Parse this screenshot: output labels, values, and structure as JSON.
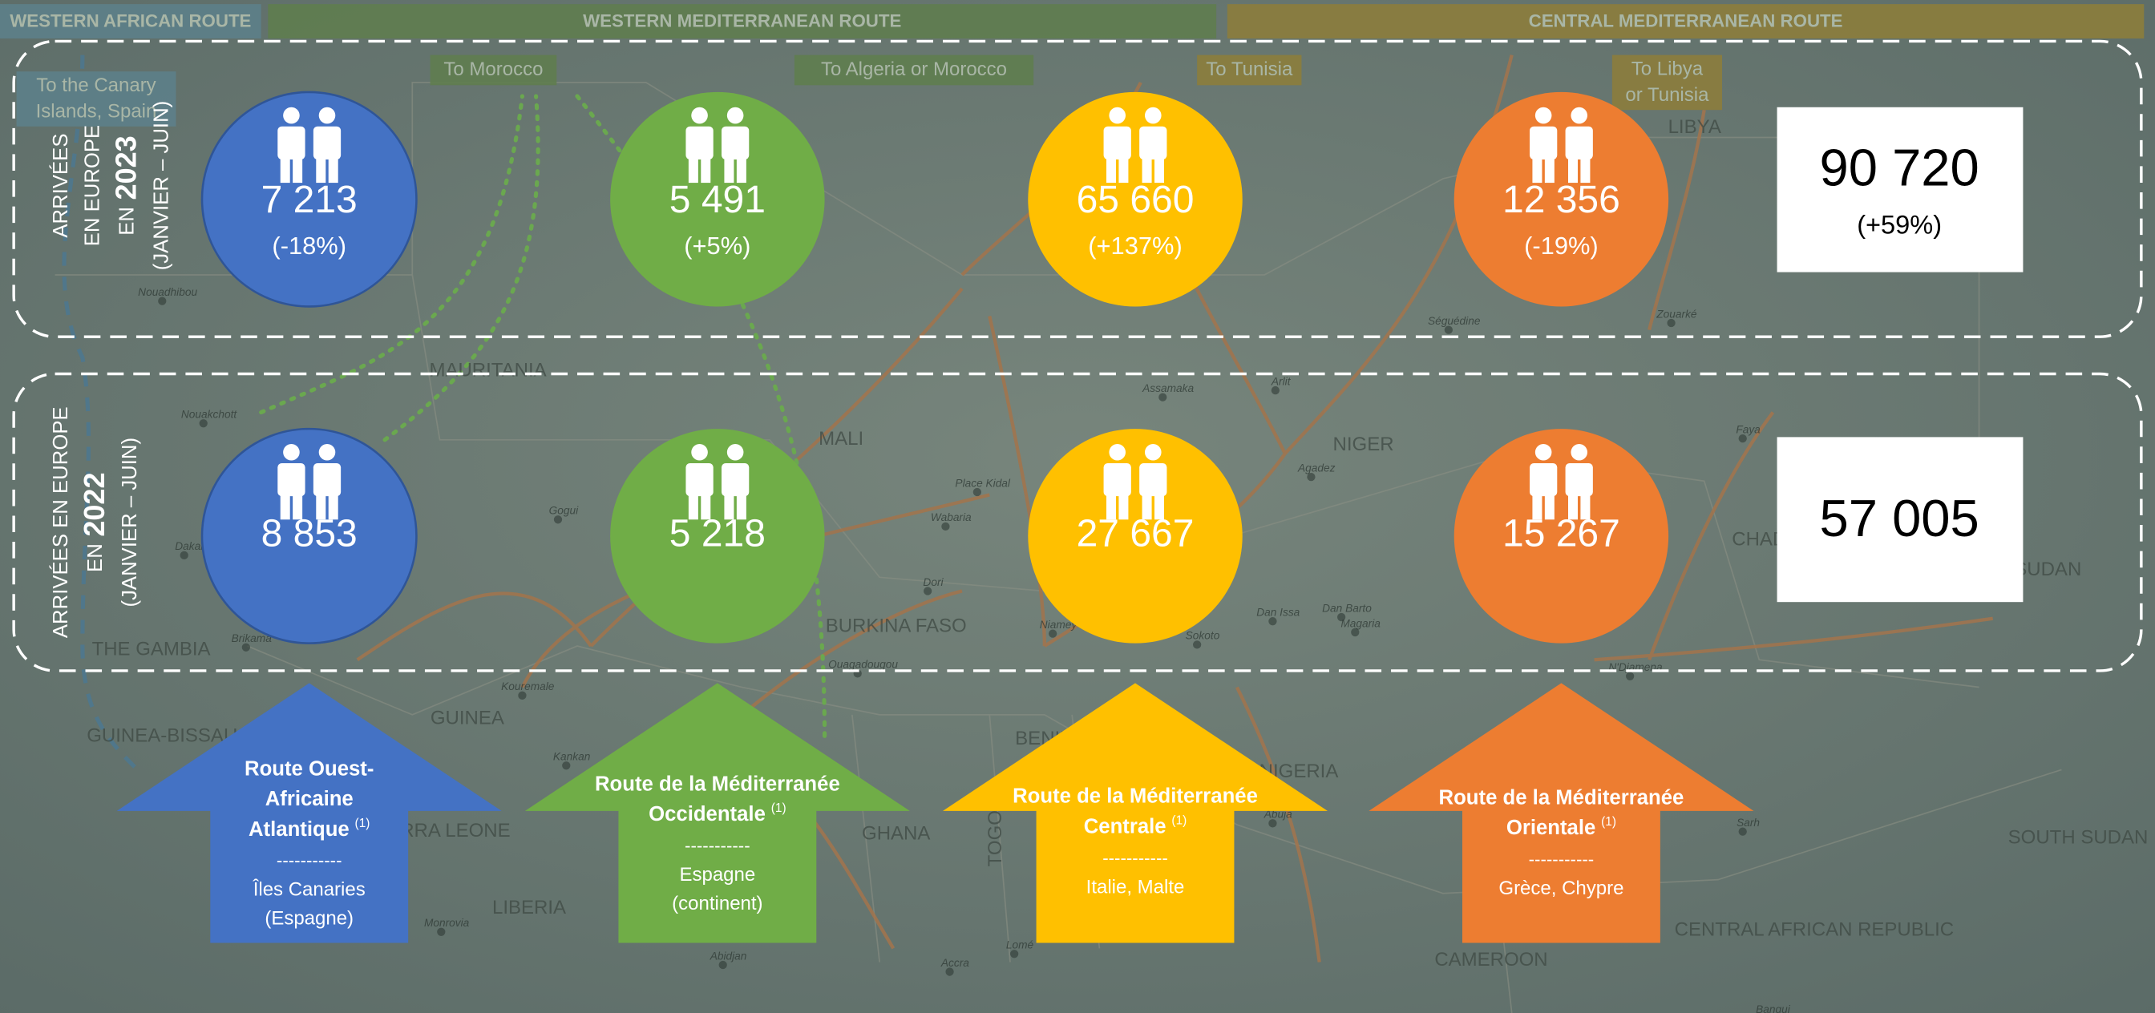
{
  "header": {
    "routes": [
      "WESTERN AFRICAN ROUTE",
      "WESTERN MEDITERRANEAN ROUTE",
      "CENTRAL MEDITERRANEAN ROUTE"
    ]
  },
  "map": {
    "destinations": [
      "To the Canary Islands, Spain",
      "To Morocco",
      "To Algeria or Morocco",
      "To Tunisia",
      "To Libya or Tunisia"
    ],
    "countries": [
      "MAURITANIA",
      "MALI",
      "NIGER",
      "BURKINA FASO",
      "GUINEA",
      "THE GAMBIA",
      "GUINEA-BISSAU",
      "SIERRA LEONE",
      "LIBERIA",
      "GHANA",
      "TOGO",
      "BENIN",
      "NIGERIA",
      "CAMEROON",
      "CHAD",
      "SUDAN",
      "SOUTH SUDAN",
      "CENTRAL AFRICAN REPUBLIC",
      "LIBYA"
    ],
    "cities": [
      "Nouadhibou",
      "Nouakchott",
      "Dakar",
      "Brikama",
      "Gogui",
      "Kouremale",
      "Kankan",
      "Monrovia",
      "Abidjan",
      "Ouagadougou",
      "Dori",
      "Place Kidal",
      "Wabaria",
      "Niamey",
      "Accra",
      "Lomé",
      "Assamaka",
      "Arlit",
      "Agadez",
      "Séguédine",
      "Zouarké",
      "Faya",
      "Sokoto",
      "Dan Issa",
      "Dan Barto",
      "Magaria",
      "Abuja",
      "N'Djamena",
      "Sarh",
      "Bangui"
    ]
  },
  "rows": [
    {
      "label": [
        [
          "ARRIVÉES"
        ],
        [
          "EN EUROPE"
        ],
        [
          "EN",
          "2023"
        ],
        [
          "(JANVIER – JUIN)"
        ]
      ],
      "values": [
        {
          "value": "7 213",
          "change": "(-18%)"
        },
        {
          "value": "5 491",
          "change": "(+5%)"
        },
        {
          "value": "65 660",
          "change": "(+137%)"
        },
        {
          "value": "12 356",
          "change": "(-19%)"
        }
      ],
      "total": {
        "value": "90 720",
        "change": "(+59%)"
      }
    },
    {
      "label": [
        [
          "ARRIVÉES EN EUROPE"
        ],
        [
          "EN",
          "2022"
        ],
        [
          "(JANVIER – JUIN)"
        ]
      ],
      "values": [
        {
          "value": "8 853"
        },
        {
          "value": "5 218"
        },
        {
          "value": "27 667"
        },
        {
          "value": "15 267"
        }
      ],
      "total": {
        "value": "57 005"
      }
    }
  ],
  "routes": [
    {
      "title": [
        "Route Ouest-",
        "Africaine",
        "Atlantique"
      ],
      "note": "(1)",
      "separator": "-----------",
      "destination": [
        "Îles Canaries",
        "(Espagne)"
      ]
    },
    {
      "title": [
        "Route de la Méditerranée",
        "Occidentale"
      ],
      "note": "(1)",
      "separator": "-----------",
      "destination": [
        "Espagne",
        "(continent)"
      ]
    },
    {
      "title": [
        "Route de la Méditerranée",
        "Centrale"
      ],
      "note": "(1)",
      "separator": "-----------",
      "destination": [
        "Italie, Malte"
      ]
    },
    {
      "title": [
        "Route de la Méditerranée",
        "Orientale"
      ],
      "note": "(1)",
      "separator": "-----------",
      "destination": [
        "Grèce, Chypre"
      ]
    }
  ]
}
